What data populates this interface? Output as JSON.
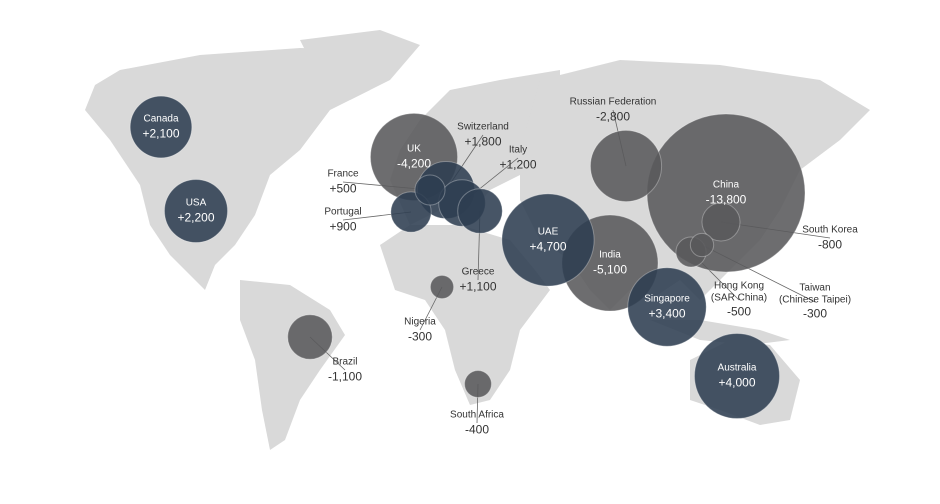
{
  "chart_data": {
    "type": "bubble",
    "categories": [
      "Canada",
      "USA",
      "UK",
      "Switzerland",
      "Italy",
      "France",
      "Portugal",
      "Greece",
      "Brazil",
      "Nigeria",
      "South Africa",
      "UAE",
      "India",
      "Russian Federation",
      "China",
      "Singapore",
      "Australia",
      "South Korea",
      "Hong Kong\n(SAR China)",
      "Taiwan\n(Chinese Taipei)"
    ],
    "values": [
      2100,
      2200,
      -4200,
      1800,
      1200,
      500,
      900,
      1100,
      -1100,
      -300,
      -400,
      4700,
      -5100,
      -2800,
      -13800,
      3400,
      4000,
      -800,
      -500,
      -300
    ],
    "value_labels": [
      "+2,100",
      "+2,200",
      "-4,200",
      "+1,800",
      "+1,200",
      "+500",
      "+900",
      "+1,100",
      "-1,100",
      "-300",
      "-400",
      "+4,700",
      "-5,100",
      "-2,800",
      "-13,800",
      "+3,400",
      "+4,000",
      "-800",
      "-500",
      "-300"
    ],
    "colors": {
      "gain": "#2e3d51",
      "loss": "#59595b"
    }
  }
}
